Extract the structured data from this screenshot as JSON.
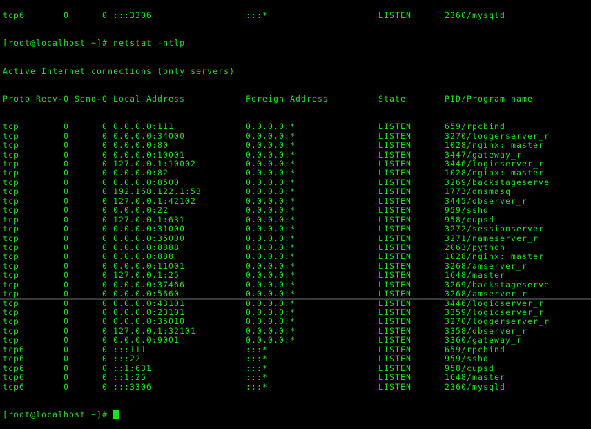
{
  "terminal": {
    "prompt": "[root@localhost ~]#",
    "command": "netstat -ntlp",
    "summary": "Active Internet connections (only servers)",
    "headers": {
      "proto": "Proto",
      "recv": "Recv-Q",
      "send": "Send-Q",
      "local": "Local Address",
      "foreign": "Foreign Address",
      "state": "State",
      "pid": "PID/Program name"
    },
    "partial_top_row": [
      "tcp6",
      "0",
      "0",
      ":::3306",
      ":::*",
      "LISTEN",
      "2360/mysqld"
    ],
    "rows": [
      [
        "tcp",
        "0",
        "0",
        "0.0.0.0:111",
        "0.0.0.0:*",
        "LISTEN",
        "659/rpcbind"
      ],
      [
        "tcp",
        "0",
        "0",
        "0.0.0.0:34000",
        "0.0.0.0:*",
        "LISTEN",
        "3270/loggerserver_r"
      ],
      [
        "tcp",
        "0",
        "0",
        "0.0.0.0:80",
        "0.0.0.0:*",
        "LISTEN",
        "1028/nginx: master"
      ],
      [
        "tcp",
        "0",
        "0",
        "0.0.0.0:10001",
        "0.0.0.0:*",
        "LISTEN",
        "3447/gateway_r"
      ],
      [
        "tcp",
        "0",
        "0",
        "127.0.0.1:10002",
        "0.0.0.0:*",
        "LISTEN",
        "3446/logicserver_r"
      ],
      [
        "tcp",
        "0",
        "0",
        "0.0.0.0:82",
        "0.0.0.0:*",
        "LISTEN",
        "1028/nginx: master"
      ],
      [
        "tcp",
        "0",
        "0",
        "0.0.0.0:8500",
        "0.0.0.0:*",
        "LISTEN",
        "3269/backstageserve"
      ],
      [
        "tcp",
        "0",
        "0",
        "192.168.122.1:53",
        "0.0.0.0:*",
        "LISTEN",
        "1773/dnsmasq"
      ],
      [
        "tcp",
        "0",
        "0",
        "127.0.0.1:42102",
        "0.0.0.0:*",
        "LISTEN",
        "3445/dbserver_r"
      ],
      [
        "tcp",
        "0",
        "0",
        "0.0.0.0:22",
        "0.0.0.0:*",
        "LISTEN",
        "959/sshd"
      ],
      [
        "tcp",
        "0",
        "0",
        "127.0.0.1:631",
        "0.0.0.0:*",
        "LISTEN",
        "958/cupsd"
      ],
      [
        "tcp",
        "0",
        "0",
        "0.0.0.0:31000",
        "0.0.0.0:*",
        "LISTEN",
        "3272/sessionserver_"
      ],
      [
        "tcp",
        "0",
        "0",
        "0.0.0.0:35000",
        "0.0.0.0:*",
        "LISTEN",
        "3271/nameserver_r"
      ],
      [
        "tcp",
        "0",
        "0",
        "0.0.0.0:8888",
        "0.0.0.0:*",
        "LISTEN",
        "2063/python"
      ],
      [
        "tcp",
        "0",
        "0",
        "0.0.0.0:888",
        "0.0.0.0:*",
        "LISTEN",
        "1028/nginx: master"
      ],
      [
        "tcp",
        "0",
        "0",
        "0.0.0.0:11001",
        "0.0.0.0:*",
        "LISTEN",
        "3268/amserver_r"
      ],
      [
        "tcp",
        "0",
        "0",
        "127.0.0.1:25",
        "0.0.0.0:*",
        "LISTEN",
        "1648/master"
      ],
      [
        "tcp",
        "0",
        "0",
        "0.0.0.0:37466",
        "0.0.0.0:*",
        "LISTEN",
        "3269/backstageserve"
      ],
      [
        "tcp",
        "0",
        "0",
        "0.0.0.0:5660",
        "0.0.0.0:*",
        "LISTEN",
        "3268/amserver_r"
      ],
      [
        "tcp",
        "0",
        "0",
        "0.0.0.0:43101",
        "0.0.0.0:*",
        "LISTEN",
        "3446/logicserver_r"
      ],
      [
        "tcp",
        "0",
        "0",
        "0.0.0.0:23101",
        "0.0.0.0:*",
        "LISTEN",
        "3359/logicserver_r"
      ],
      [
        "tcp",
        "0",
        "0",
        "0.0.0.0:35010",
        "0.0.0.0:*",
        "LISTEN",
        "3270/loggerserver_r"
      ],
      [
        "tcp",
        "0",
        "0",
        "127.0.0.1:32101",
        "0.0.0.0:*",
        "LISTEN",
        "3358/dbserver_r"
      ],
      [
        "tcp",
        "0",
        "0",
        "0.0.0.0:9001",
        "0.0.0.0:*",
        "LISTEN",
        "3360/gateway_r"
      ],
      [
        "tcp6",
        "0",
        "0",
        ":::111",
        ":::*",
        "LISTEN",
        "659/rpcbind"
      ],
      [
        "tcp6",
        "0",
        "0",
        ":::22",
        ":::*",
        "LISTEN",
        "959/sshd"
      ],
      [
        "tcp6",
        "0",
        "0",
        "::1:631",
        ":::*",
        "LISTEN",
        "958/cupsd"
      ],
      [
        "tcp6",
        "0",
        "0",
        "::1:25",
        ":::*",
        "LISTEN",
        "1648/master"
      ],
      [
        "tcp6",
        "0",
        "0",
        ":::3306",
        ":::*",
        "LISTEN",
        "2360/mysqld"
      ]
    ],
    "colors": {
      "text": "#1fe01f",
      "background": "#000000"
    }
  }
}
